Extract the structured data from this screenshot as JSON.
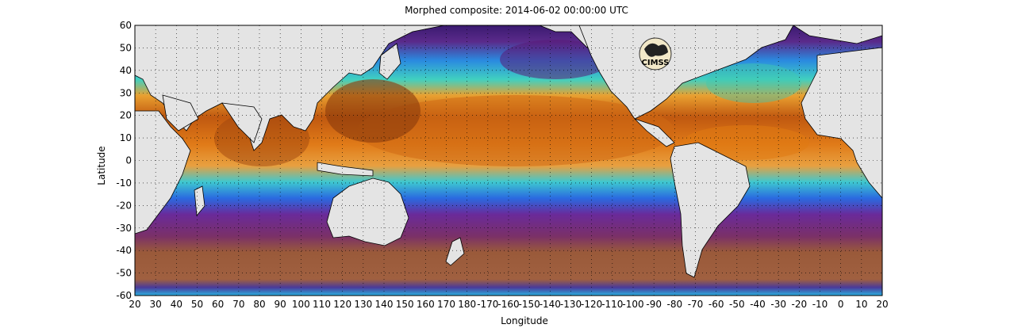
{
  "title": "Morphed composite: 2014-06-02 00:00:00 UTC",
  "chart_data": {
    "type": "heatmap",
    "title": "Morphed composite: 2014-06-02 00:00:00 UTC",
    "xlabel": "Longitude",
    "ylabel": "Latitude",
    "x_ticks": [
      "20",
      "30",
      "40",
      "50",
      "60",
      "70",
      "80",
      "90",
      "100",
      "110",
      "120",
      "130",
      "140",
      "150",
      "160",
      "170",
      "180",
      "-170",
      "-160",
      "-150",
      "-140",
      "-130",
      "-120",
      "-110",
      "-100",
      "-90",
      "-80",
      "-70",
      "-60",
      "-50",
      "-40",
      "-30",
      "-20",
      "-10",
      "0",
      "10",
      "20"
    ],
    "y_ticks": [
      "60",
      "50",
      "40",
      "30",
      "20",
      "10",
      "0",
      "-10",
      "-20",
      "-30",
      "-40",
      "-50",
      "-60"
    ],
    "xlim": [
      20,
      380
    ],
    "ylim": [
      -60,
      60
    ],
    "grid": true,
    "logo_text": "CIMSS",
    "colors": {
      "land": "#e4e4e4",
      "high": "#8a3a0c",
      "orange": "#e07a12",
      "cyan": "#4cd0d8",
      "blue": "#1e6ae0",
      "purple": "#5a1a78",
      "southern": "#9a5a3a"
    }
  }
}
